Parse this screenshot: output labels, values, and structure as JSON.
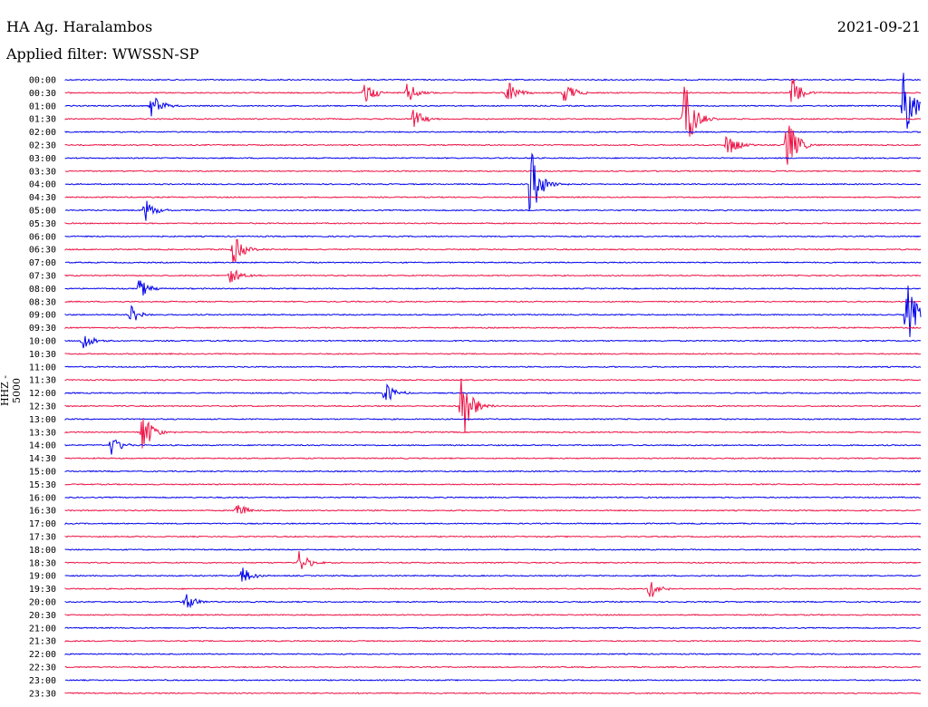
{
  "header": {
    "station": "HA Ag. Haralambos",
    "filter": "Applied filter: WWSSN-SP",
    "date": "2021-09-21",
    "channel_label": "HHZ - 5000"
  },
  "colors": {
    "blue": "#0000ee",
    "red": "#ee1144"
  },
  "chart_data": {
    "type": "line",
    "title": "HA Ag. Haralambos",
    "subtitle": "Applied filter: WWSSN-SP",
    "date": "2021-09-21",
    "ylabel": "HHZ - 5000",
    "xlabel": "",
    "time_labels": [
      "00:00",
      "00:30",
      "01:00",
      "01:30",
      "02:00",
      "02:30",
      "03:00",
      "03:30",
      "04:00",
      "04:30",
      "05:00",
      "05:30",
      "06:00",
      "06:30",
      "07:00",
      "07:30",
      "08:00",
      "08:30",
      "09:00",
      "09:30",
      "10:00",
      "10:30",
      "11:00",
      "11:30",
      "12:00",
      "12:30",
      "13:00",
      "13:30",
      "14:00",
      "14:30",
      "15:00",
      "15:30",
      "16:00",
      "16:30",
      "17:00",
      "17:30",
      "18:00",
      "18:30",
      "19:00",
      "19:30",
      "20:00",
      "20:30",
      "21:00",
      "21:30",
      "22:00",
      "22:30",
      "23:00",
      "23:30"
    ],
    "trace_minutes": 30,
    "alternating_colors": [
      "blue",
      "red"
    ],
    "events": [
      {
        "row": 1,
        "minute": 10.5,
        "amp": 0.35
      },
      {
        "row": 1,
        "minute": 12.0,
        "amp": 0.3
      },
      {
        "row": 1,
        "minute": 15.5,
        "amp": 0.35
      },
      {
        "row": 1,
        "minute": 17.5,
        "amp": 0.35
      },
      {
        "row": 1,
        "minute": 25.5,
        "amp": 0.4
      },
      {
        "row": 2,
        "minute": 3.0,
        "amp": 0.35
      },
      {
        "row": 2,
        "minute": 29.4,
        "amp": 1.0
      },
      {
        "row": 3,
        "minute": 12.2,
        "amp": 0.3
      },
      {
        "row": 3,
        "minute": 21.7,
        "amp": 1.0
      },
      {
        "row": 5,
        "minute": 23.2,
        "amp": 0.35
      },
      {
        "row": 5,
        "minute": 25.3,
        "amp": 0.8
      },
      {
        "row": 8,
        "minute": 16.3,
        "amp": 1.0
      },
      {
        "row": 10,
        "minute": 2.8,
        "amp": 0.3
      },
      {
        "row": 13,
        "minute": 5.9,
        "amp": 0.4
      },
      {
        "row": 15,
        "minute": 5.8,
        "amp": 0.25
      },
      {
        "row": 16,
        "minute": 2.6,
        "amp": 0.3
      },
      {
        "row": 18,
        "minute": 2.3,
        "amp": 0.3
      },
      {
        "row": 18,
        "minute": 29.5,
        "amp": 0.9
      },
      {
        "row": 20,
        "minute": 0.6,
        "amp": 0.3
      },
      {
        "row": 24,
        "minute": 11.2,
        "amp": 0.3
      },
      {
        "row": 25,
        "minute": 13.9,
        "amp": 1.0
      },
      {
        "row": 27,
        "minute": 2.7,
        "amp": 0.6
      },
      {
        "row": 28,
        "minute": 1.6,
        "amp": 0.3
      },
      {
        "row": 33,
        "minute": 6.0,
        "amp": 0.25
      },
      {
        "row": 37,
        "minute": 8.2,
        "amp": 0.3
      },
      {
        "row": 38,
        "minute": 6.2,
        "amp": 0.25
      },
      {
        "row": 39,
        "minute": 20.5,
        "amp": 0.3
      },
      {
        "row": 40,
        "minute": 4.2,
        "amp": 0.25
      }
    ]
  }
}
